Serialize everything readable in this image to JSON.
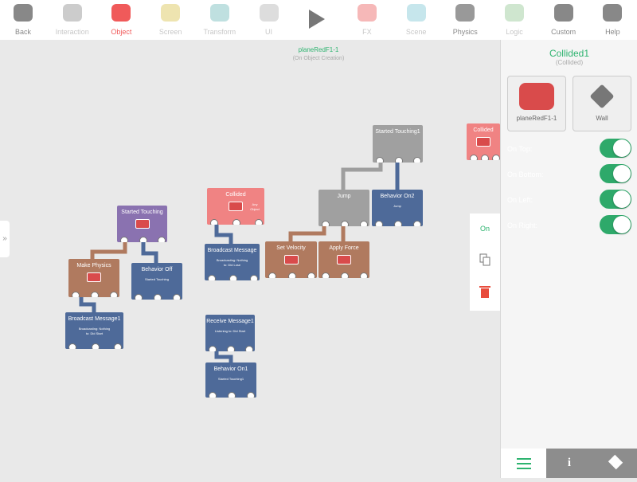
{
  "toolbar": {
    "items": [
      "Back",
      "Interaction",
      "Object",
      "Screen",
      "Transform",
      "UI",
      "FX",
      "Scene",
      "Physics",
      "Logic",
      "Custom",
      "Help"
    ]
  },
  "canvas": {
    "title": "planeRedF1-1",
    "subtitle": "(On Object Creation)",
    "nodes": [
      {
        "title": "Started Touching"
      },
      {
        "title": "Make Physics"
      },
      {
        "title": "Behavior Off",
        "detail": "Started Touching"
      },
      {
        "title": "Broadcast Message1",
        "detail": "Broadcasting: Nothing to: Did Start"
      },
      {
        "title": "Collided",
        "detail": "Any Object"
      },
      {
        "title": "Broadcast Message",
        "detail": "Broadcasting: Nothing to: Did Lose"
      },
      {
        "title": "Receive Message1",
        "detail": "Listening to: Did Start"
      },
      {
        "title": "Behavior On1",
        "detail": "Started Touching1"
      },
      {
        "title": "Started Touching1"
      },
      {
        "title": "Jump"
      },
      {
        "title": "Behavior On2",
        "detail": "Jump"
      },
      {
        "title": "Set Velocity"
      },
      {
        "title": "Apply Force"
      },
      {
        "title": "Collided"
      }
    ]
  },
  "side_menu": {
    "state": "On"
  },
  "panel": {
    "title": "Collided1",
    "subtitle": "(Collided)",
    "objects": [
      "planeRedF1-1",
      "Wall"
    ],
    "toggles": [
      "On Top:",
      "On Bottom:",
      "On Left:",
      "On Right:"
    ]
  }
}
